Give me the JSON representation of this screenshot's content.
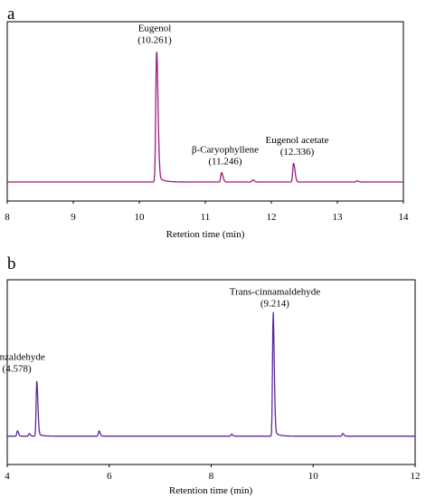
{
  "chart_data": [
    {
      "panel_letter": "a",
      "type": "line",
      "xlabel": "Retetion time (min)",
      "ylabel": "",
      "xlim": [
        8,
        14
      ],
      "xticks": [
        "8",
        "9",
        "10",
        "11",
        "12",
        "13",
        "14"
      ],
      "grid": false,
      "color": "#9a1f7a",
      "peaks": [
        {
          "name": "Eugenol",
          "rt_label": "(10.261)",
          "x": 10.261,
          "height": 0.95
        },
        {
          "name": "β-Caryophyllene",
          "rt_label": "(11.246)",
          "x": 11.246,
          "height": 0.07
        },
        {
          "name": "Eugenol acetate",
          "rt_label": "(12.336)",
          "x": 12.336,
          "height": 0.14
        }
      ],
      "minor_peaks": [
        {
          "x": 11.72,
          "height": 0.015
        },
        {
          "x": 13.3,
          "height": 0.008
        }
      ]
    },
    {
      "panel_letter": "b",
      "type": "line",
      "xlabel": "Retention time (min)",
      "ylabel": "",
      "xlim": [
        4,
        12
      ],
      "xticks": [
        "4",
        "6",
        "8",
        "10",
        "12"
      ],
      "grid": false,
      "color": "#5a2a9a",
      "peaks": [
        {
          "name": "Benzaldehyde",
          "rt_label": "(4.578)",
          "x": 4.578,
          "height": 0.41
        },
        {
          "name": "Trans-cinnamaldehyde",
          "rt_label": "(9.214)",
          "x": 9.214,
          "height": 0.9
        }
      ],
      "minor_peaks": [
        {
          "x": 4.2,
          "height": 0.04
        },
        {
          "x": 4.43,
          "height": 0.02
        },
        {
          "x": 5.8,
          "height": 0.04
        },
        {
          "x": 8.4,
          "height": 0.015
        },
        {
          "x": 10.58,
          "height": 0.02
        }
      ]
    }
  ]
}
